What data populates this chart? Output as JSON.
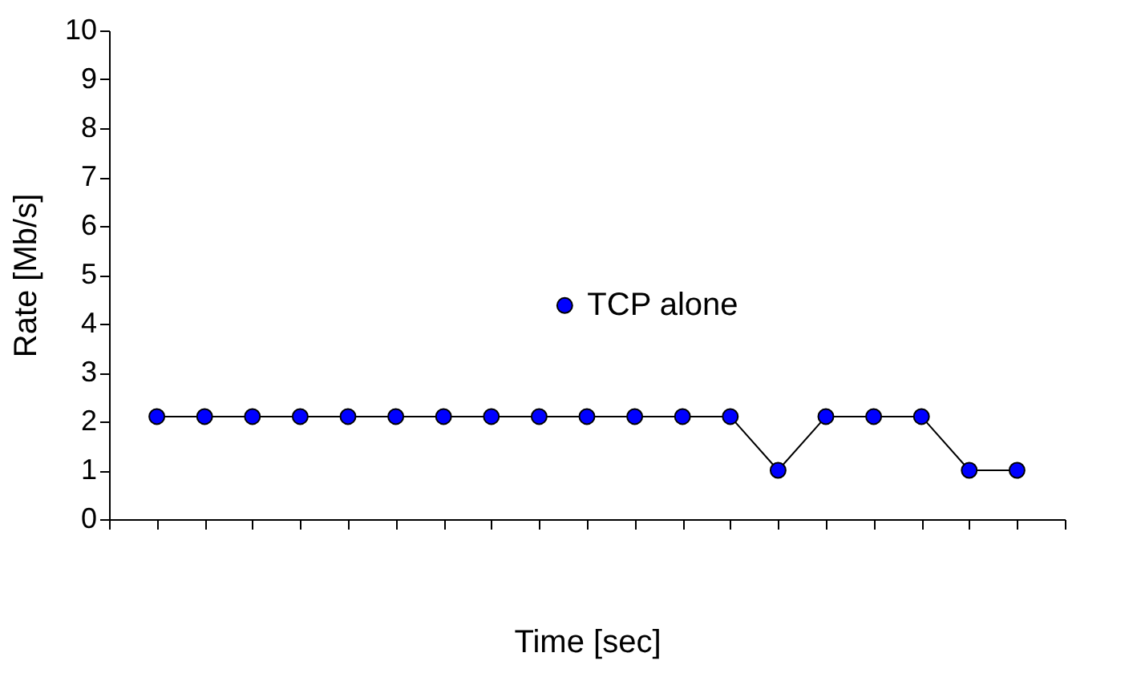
{
  "chart_data": {
    "type": "line",
    "xlabel": "Time [sec]",
    "ylabel": "Rate [Mb/s]",
    "categories": [
      null,
      null,
      null,
      null,
      null,
      null,
      null,
      null,
      null,
      null,
      null,
      null,
      null,
      null,
      null,
      null,
      null,
      null,
      null
    ],
    "series": [
      {
        "name": "TCP alone",
        "color": "#0000ff",
        "values": [
          2.1,
          2.1,
          2.1,
          2.1,
          2.1,
          2.1,
          2.1,
          2.1,
          2.1,
          2.1,
          2.1,
          2.1,
          2.1,
          1.0,
          2.1,
          2.1,
          2.1,
          1.0,
          1.0
        ]
      }
    ],
    "ylim": [
      0,
      10
    ],
    "yticks": [
      0,
      1,
      2,
      3,
      4,
      5,
      6,
      7,
      8,
      9,
      10
    ],
    "marker": "circle",
    "line_style": "solid",
    "legend": "bottom right",
    "tick_labels": "y"
  }
}
